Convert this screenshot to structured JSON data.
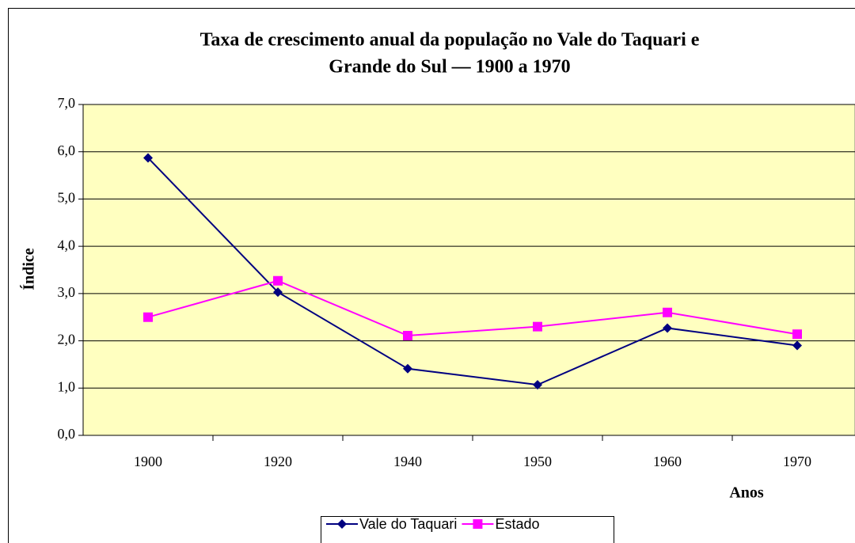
{
  "chart_data": {
    "type": "line",
    "title": [
      "Taxa de crescimento anual da população no Vale do Taquari e",
      "Grande do Sul — 1900 a 1970"
    ],
    "x_label": "Anos",
    "y_label": "Índice",
    "categories": [
      "1900",
      "1920",
      "1940",
      "1950",
      "1960",
      "1970"
    ],
    "series": [
      {
        "name": "Vale do Taquari",
        "color": "#000080",
        "marker": "diamond",
        "values": [
          5.87,
          3.03,
          1.41,
          1.07,
          2.27,
          1.9
        ]
      },
      {
        "name": "Estado",
        "color": "#ff00ff",
        "marker": "square",
        "values": [
          2.5,
          3.27,
          2.11,
          2.3,
          2.6,
          2.14
        ]
      }
    ],
    "ylim": [
      0,
      7
    ],
    "yticks": [
      {
        "value": 0,
        "label": "0,0"
      },
      {
        "value": 1,
        "label": "1,0"
      },
      {
        "value": 2,
        "label": "2,0"
      },
      {
        "value": 3,
        "label": "3,0"
      },
      {
        "value": 4,
        "label": "4,0"
      },
      {
        "value": 5,
        "label": "5,0"
      },
      {
        "value": 6,
        "label": "6,0"
      },
      {
        "value": 7,
        "label": "7,0"
      }
    ],
    "grid": true,
    "legend": "bottom",
    "plot_background": "#ffffc0"
  }
}
